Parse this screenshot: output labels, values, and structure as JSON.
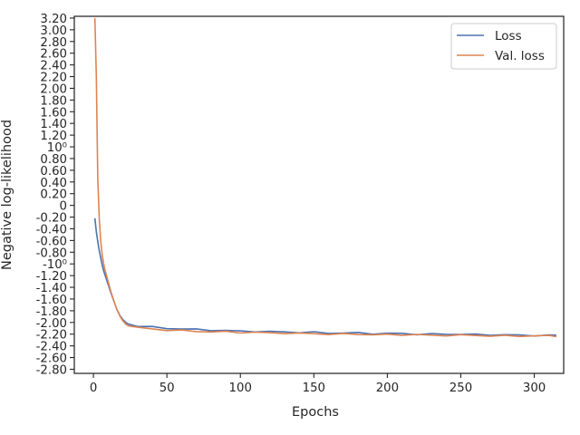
{
  "chart_data": {
    "type": "line",
    "title": "",
    "xlabel": "Epochs",
    "ylabel": "Negative log-likelihood",
    "xlim": [
      -13,
      320
    ],
    "ylim": [
      -2.87,
      3.23
    ],
    "grid": false,
    "legend_position": "top-right",
    "x_ticks": [
      0,
      50,
      100,
      150,
      200,
      250,
      300
    ],
    "x_tick_labels": [
      "0",
      "50",
      "100",
      "150",
      "200",
      "250",
      "300"
    ],
    "y_ticks": [
      3.2,
      3.0,
      2.8,
      2.6,
      2.4,
      2.2,
      2.0,
      1.8,
      1.6,
      1.4,
      1.2,
      1.0,
      0.8,
      0.6,
      0.4,
      0.2,
      0.0,
      -0.2,
      -0.4,
      -0.6,
      -0.8,
      -1.0,
      -1.2,
      -1.4,
      -1.6,
      -1.8,
      -2.0,
      -2.2,
      -2.4,
      -2.6,
      -2.8
    ],
    "y_tick_labels": [
      "3.20",
      "3.00",
      "2.80",
      "2.60",
      "2.40",
      "2.20",
      "2.00",
      "1.80",
      "1.60",
      "1.40",
      "1.20",
      "10⁰",
      "0.80",
      "0.60",
      "0.40",
      "0.20",
      "0",
      "-0.20",
      "-0.40",
      "-0.60",
      "-0.80",
      "-10⁰",
      "-1.20",
      "-1.40",
      "-1.60",
      "-1.80",
      "-2.00",
      "-2.20",
      "-2.40",
      "-2.60",
      "-2.80"
    ],
    "series": [
      {
        "name": "Loss",
        "color": "#4c72b0",
        "x": [
          1,
          2,
          3,
          4,
          5,
          6,
          7,
          8,
          10,
          12,
          14,
          16,
          18,
          20,
          22,
          24,
          30,
          40,
          50,
          60,
          70,
          80,
          90,
          100,
          110,
          120,
          130,
          140,
          150,
          160,
          170,
          180,
          190,
          200,
          210,
          220,
          230,
          240,
          250,
          260,
          270,
          280,
          290,
          300,
          310,
          315
        ],
        "y": [
          -0.22,
          -0.45,
          -0.62,
          -0.78,
          -0.9,
          -1.02,
          -1.12,
          -1.2,
          -1.35,
          -1.5,
          -1.64,
          -1.78,
          -1.88,
          -1.95,
          -2.0,
          -2.03,
          -2.06,
          -2.08,
          -2.1,
          -2.11,
          -2.12,
          -2.13,
          -2.14,
          -2.15,
          -2.15,
          -2.16,
          -2.16,
          -2.17,
          -2.17,
          -2.18,
          -2.18,
          -2.18,
          -2.19,
          -2.19,
          -2.19,
          -2.2,
          -2.2,
          -2.2,
          -2.2,
          -2.21,
          -2.21,
          -2.21,
          -2.22,
          -2.22,
          -2.22,
          -2.22
        ]
      },
      {
        "name": "Val. loss",
        "color": "#dd8452",
        "x": [
          1,
          2,
          3,
          4,
          5,
          6,
          7,
          8,
          10,
          12,
          14,
          16,
          18,
          20,
          22,
          24,
          30,
          40,
          50,
          60,
          70,
          80,
          90,
          100,
          110,
          120,
          130,
          140,
          150,
          160,
          170,
          180,
          190,
          200,
          210,
          220,
          230,
          240,
          250,
          260,
          270,
          280,
          290,
          300,
          310,
          315
        ],
        "y": [
          3.2,
          2.2,
          0.45,
          -0.25,
          -0.62,
          -0.85,
          -1.0,
          -1.12,
          -1.3,
          -1.48,
          -1.64,
          -1.78,
          -1.89,
          -1.97,
          -2.03,
          -2.06,
          -2.09,
          -2.11,
          -2.13,
          -2.14,
          -2.15,
          -2.16,
          -2.16,
          -2.17,
          -2.17,
          -2.18,
          -2.18,
          -2.19,
          -2.19,
          -2.2,
          -2.2,
          -2.2,
          -2.21,
          -2.21,
          -2.21,
          -2.21,
          -2.22,
          -2.22,
          -2.22,
          -2.22,
          -2.23,
          -2.23,
          -2.23,
          -2.23,
          -2.23,
          -2.23
        ]
      }
    ]
  }
}
